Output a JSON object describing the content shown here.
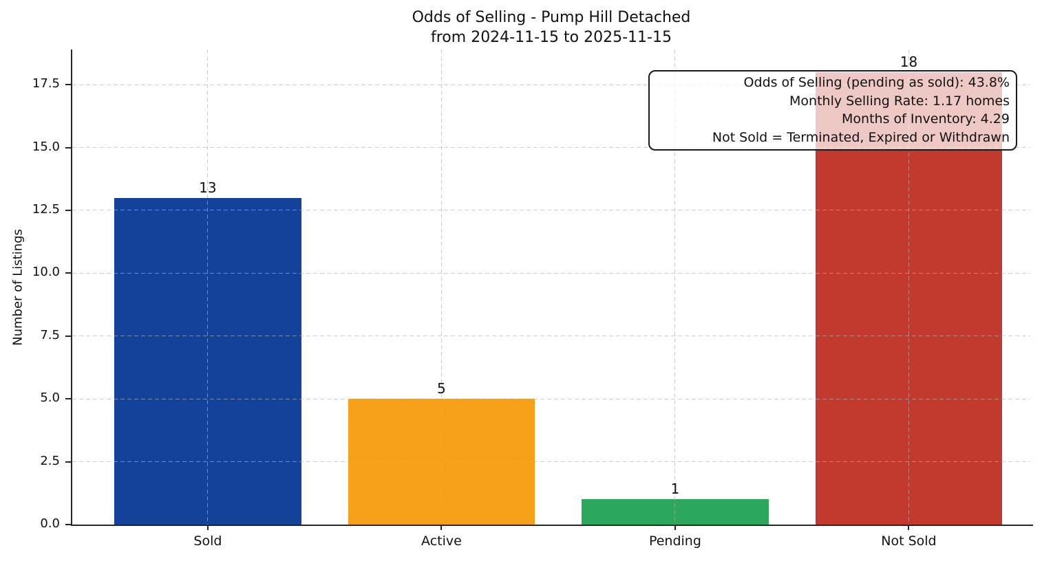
{
  "chart_data": {
    "type": "bar",
    "title": "Odds of Selling - Pump Hill Detached",
    "subtitle": "from 2024-11-15 to 2025-11-15",
    "ylabel": "Number of Listings",
    "xlabel": "",
    "categories": [
      "Sold",
      "Active",
      "Pending",
      "Not Sold"
    ],
    "values": [
      13,
      5,
      1,
      18
    ],
    "value_labels": [
      "13",
      "5",
      "1",
      "18"
    ],
    "bar_colors": [
      "#14429b",
      "#f5a016",
      "#2ca85c",
      "#c23a2d"
    ],
    "bar_width": 0.8,
    "ylim": [
      0,
      18.9
    ],
    "xlim": [
      -0.58,
      3.52
    ],
    "yticks": [
      0,
      2.5,
      5,
      7.5,
      10,
      12.5,
      15,
      17.5
    ],
    "ytick_labels": [
      "0.0",
      "2.5",
      "5.0",
      "7.5",
      "10.0",
      "12.5",
      "15.0",
      "17.5"
    ],
    "grid": "both-dashed",
    "grid_color": "#d2d2d2",
    "axis_color": "#262626",
    "background_color": "#ffffff",
    "legend": "none",
    "annotation": {
      "position": "top-right",
      "lines": [
        "Odds of Selling (pending as sold): 43.8%",
        "Monthly Selling Rate: 1.17 homes",
        "Months of Inventory: 4.29",
        "Not Sold = Terminated, Expired or Withdrawn"
      ]
    }
  }
}
